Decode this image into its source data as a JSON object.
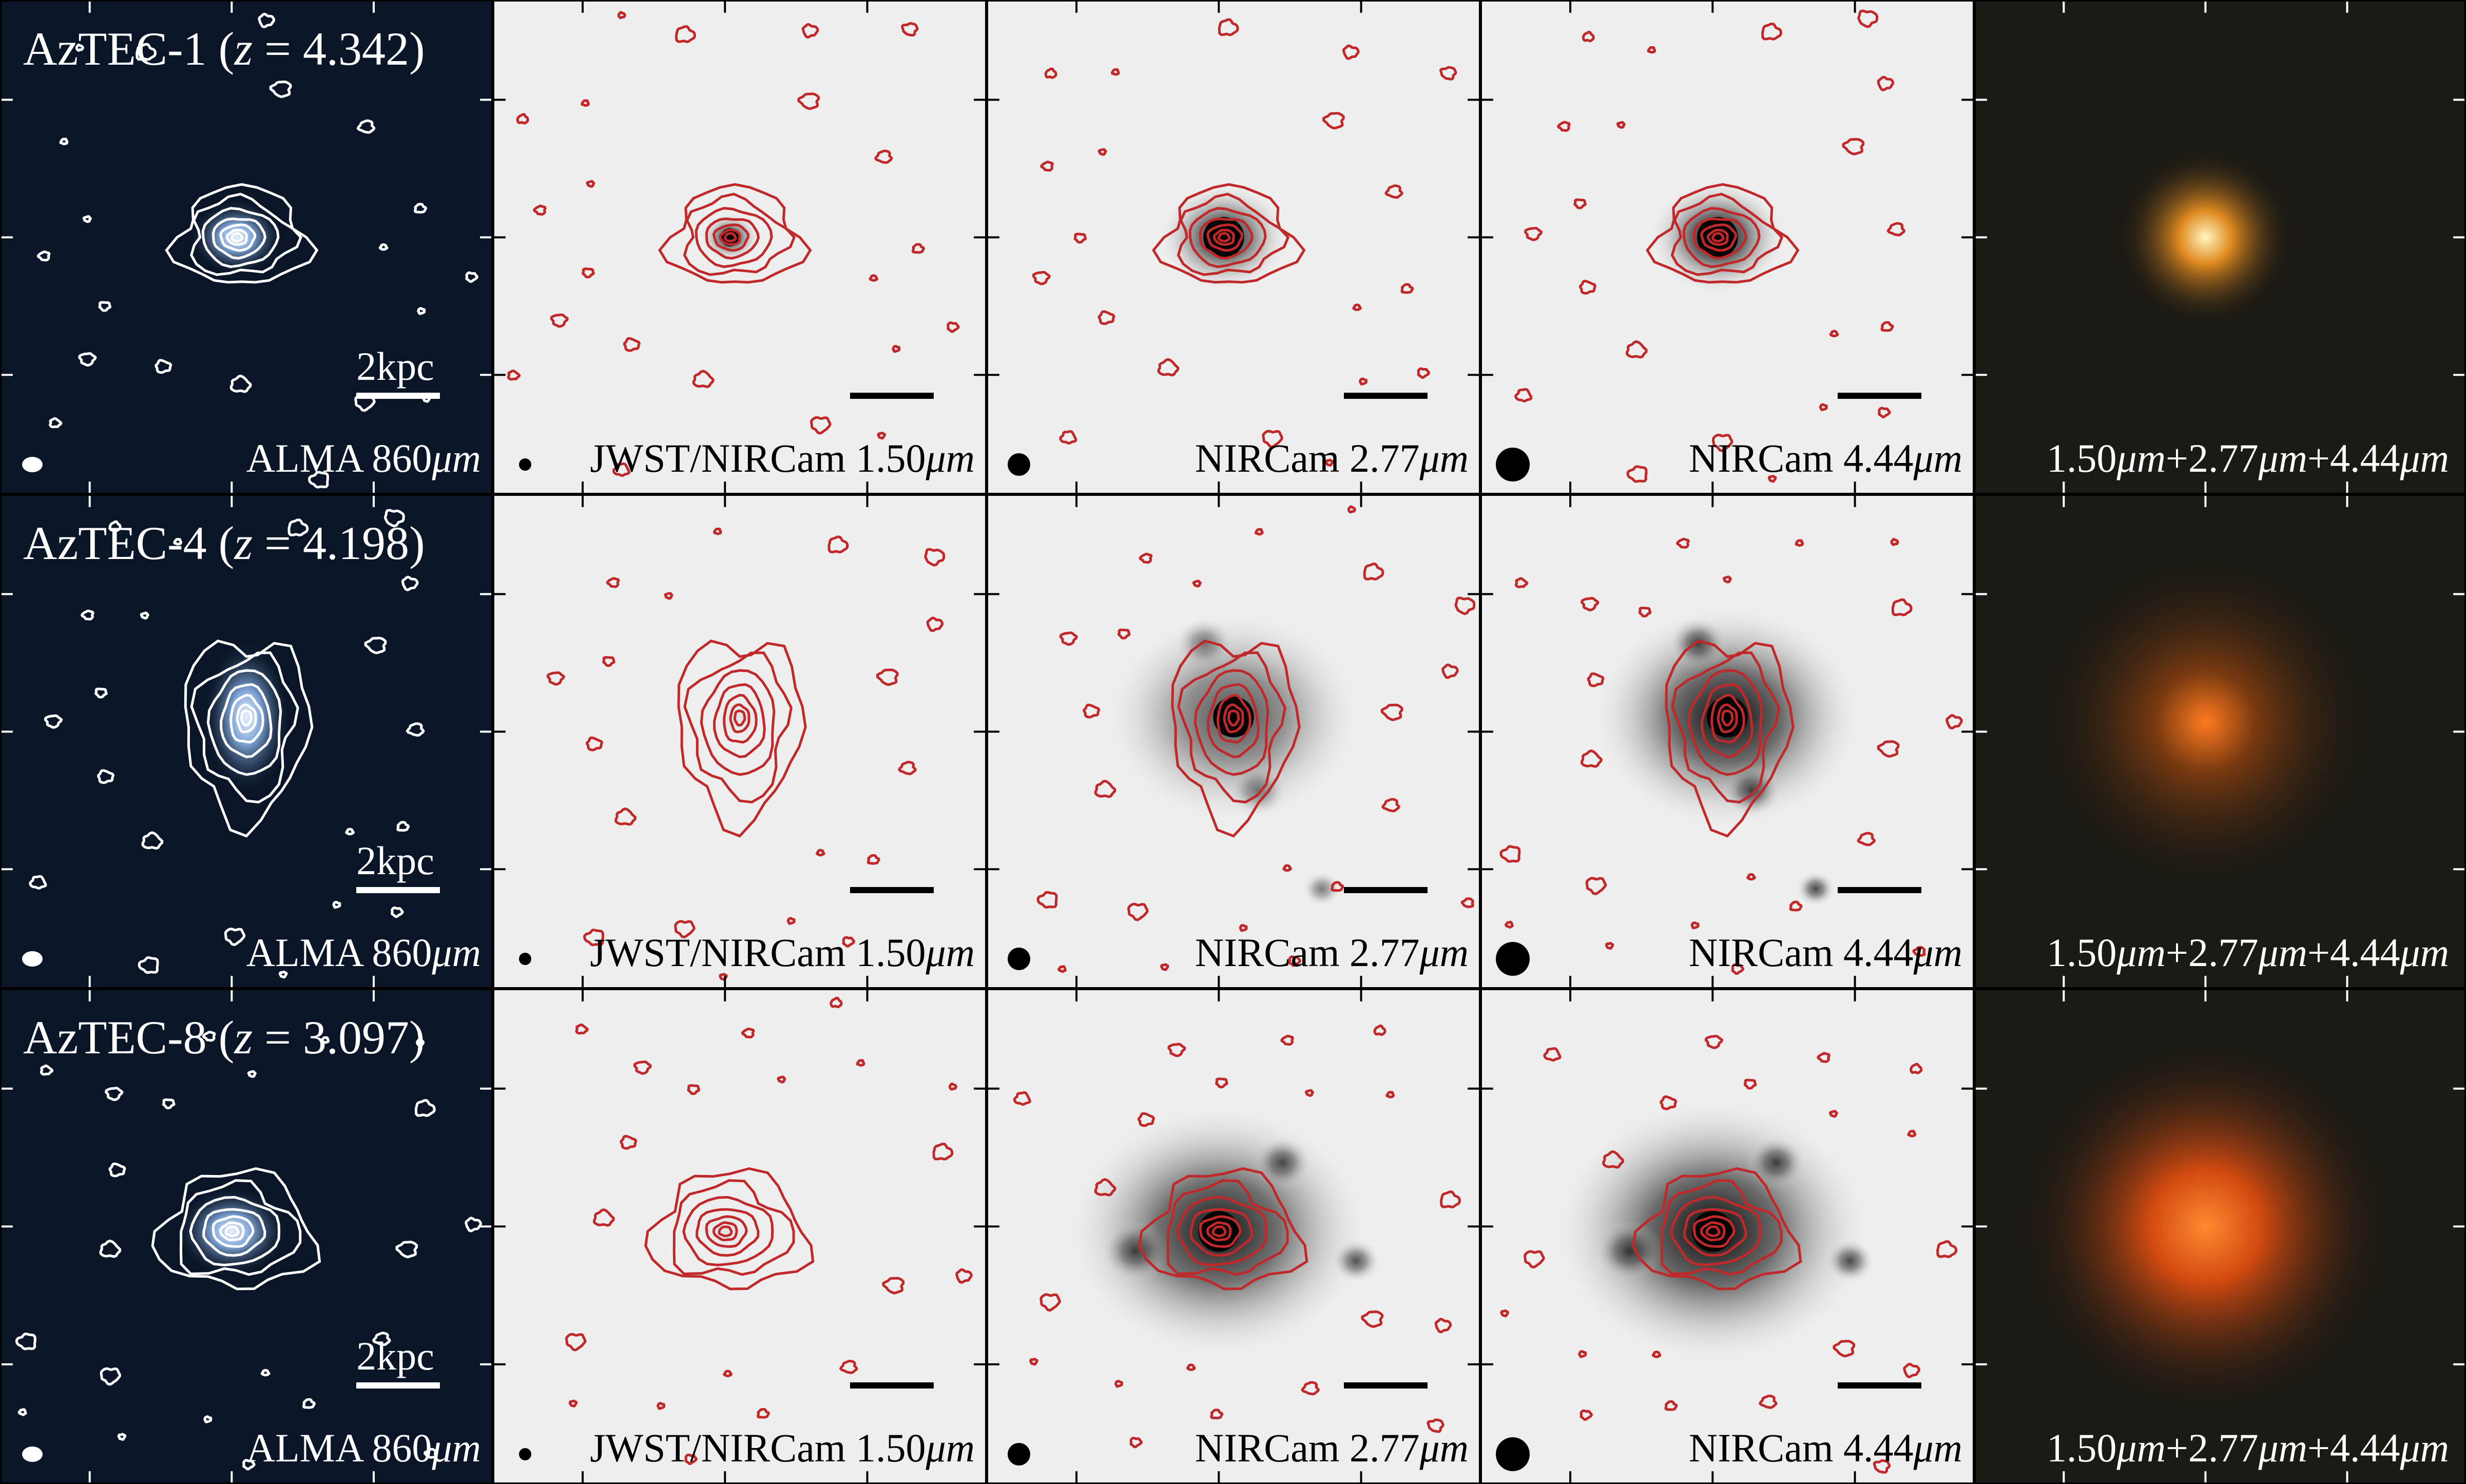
{
  "rows": [
    {
      "title_name": "AzTEC-1",
      "title_z": "4.342",
      "scale_label": "2kpc"
    },
    {
      "title_name": "AzTEC-4",
      "title_z": "4.198",
      "scale_label": "2kpc"
    },
    {
      "title_name": "AzTEC-8",
      "title_z": "3.097",
      "scale_label": "2kpc"
    }
  ],
  "columns": {
    "alma": {
      "prefix": "ALMA 860",
      "unit": "μm"
    },
    "f150": {
      "prefix": "JWST/NIRCam 1.50",
      "unit": "μm"
    },
    "f277": {
      "prefix": "NIRCam 2.77",
      "unit": "μm"
    },
    "f444": {
      "prefix": "NIRCam 4.44",
      "unit": "μm"
    },
    "rgb": {
      "parts": [
        "1.50",
        "μm",
        "+2.77",
        "μm",
        "+4.44",
        "μm"
      ]
    }
  },
  "colors": {
    "alma_bg": "#0a1628",
    "alma_contour": "#ffffff",
    "nir_bg": "#eeeeee",
    "nir_contour": "#c0282a",
    "rgb_bg": "#1c1a14"
  }
}
